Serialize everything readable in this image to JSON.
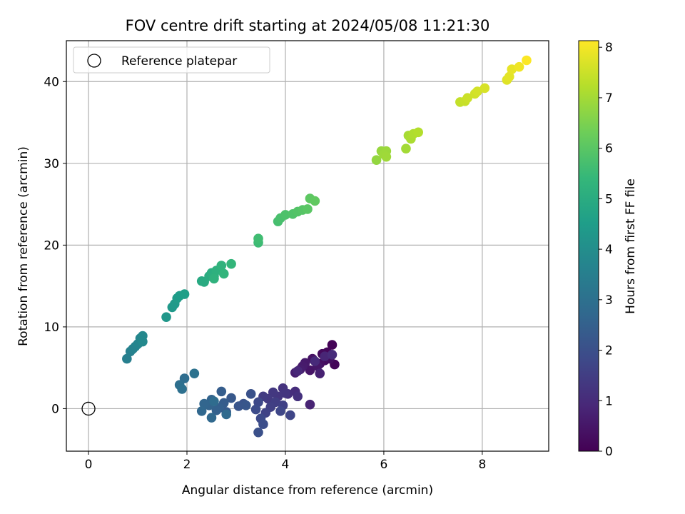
{
  "chart_data": {
    "type": "scatter",
    "title": "FOV centre drift starting at 2024/05/08 11:21:30",
    "xlabel": "Angular distance from reference (arcmin)",
    "ylabel": "Rotation from reference (arcmin)",
    "xlim": [
      -0.45,
      9.35
    ],
    "ylim": [
      -5.2,
      45.0
    ],
    "xticks": [
      0,
      2,
      4,
      6,
      8
    ],
    "yticks": [
      0,
      10,
      20,
      30,
      40
    ],
    "grid": true,
    "legend": {
      "placement": "upper-left",
      "entries": [
        "Reference platepar"
      ]
    },
    "reference_point": {
      "x": 0,
      "y": 0,
      "marker": "open-circle"
    },
    "colorbar": {
      "label": "Hours from first FF file",
      "min": 0,
      "max": 8.13,
      "ticks": [
        0,
        1,
        2,
        3,
        4,
        5,
        6,
        7,
        8
      ],
      "colormap": "viridis"
    },
    "colors": {
      "viridis": [
        "#440154",
        "#482878",
        "#3e4989",
        "#31688e",
        "#26828e",
        "#1f9e89",
        "#35b779",
        "#6ece58",
        "#b5de2b",
        "#fde725"
      ],
      "grid": "#b0b0b0"
    },
    "points": [
      [
        4.95,
        7.8,
        0.05
      ],
      [
        5.0,
        5.4,
        0.1
      ],
      [
        4.85,
        6.9,
        0.15
      ],
      [
        4.75,
        6.7,
        0.2
      ],
      [
        4.8,
        5.9,
        0.25
      ],
      [
        4.9,
        6.1,
        0.3
      ],
      [
        4.7,
        5.5,
        0.35
      ],
      [
        4.55,
        6.1,
        0.4
      ],
      [
        4.5,
        4.7,
        0.45
      ],
      [
        4.65,
        5.2,
        0.5
      ],
      [
        4.4,
        5.6,
        0.55
      ],
      [
        4.35,
        5.2,
        0.6
      ],
      [
        4.3,
        4.8,
        0.65
      ],
      [
        4.2,
        4.4,
        0.7
      ],
      [
        4.7,
        4.3,
        0.75
      ],
      [
        4.5,
        0.5,
        0.8
      ],
      [
        4.8,
        6.4,
        0.85
      ],
      [
        4.25,
        4.6,
        0.9
      ],
      [
        4.6,
        5.8,
        0.95
      ],
      [
        4.95,
        6.6,
        1.0
      ],
      [
        4.2,
        2.1,
        1.05
      ],
      [
        4.05,
        1.8,
        1.1
      ],
      [
        4.25,
        1.5,
        1.15
      ],
      [
        3.95,
        2.5,
        1.2
      ],
      [
        4.0,
        1.9,
        1.25
      ],
      [
        3.85,
        1.5,
        1.3
      ],
      [
        3.75,
        2.0,
        1.35
      ],
      [
        3.65,
        1.2,
        1.4
      ],
      [
        3.55,
        1.5,
        1.45
      ],
      [
        3.8,
        0.8,
        1.5
      ],
      [
        3.7,
        0.2,
        1.55
      ],
      [
        3.95,
        0.4,
        1.6
      ],
      [
        3.6,
        -0.5,
        1.65
      ],
      [
        4.1,
        -0.8,
        1.7
      ],
      [
        3.9,
        -0.3,
        1.75
      ],
      [
        3.45,
        0.8,
        1.8
      ],
      [
        3.5,
        -1.2,
        1.85
      ],
      [
        3.4,
        -0.1,
        1.9
      ],
      [
        3.55,
        -1.9,
        1.95
      ],
      [
        3.45,
        -2.9,
        2.0
      ],
      [
        3.3,
        1.8,
        2.05
      ],
      [
        3.15,
        0.6,
        2.1
      ],
      [
        3.05,
        0.3,
        2.15
      ],
      [
        3.2,
        0.4,
        2.2
      ],
      [
        2.9,
        1.3,
        2.25
      ],
      [
        2.8,
        -0.4,
        2.3
      ],
      [
        2.75,
        0.7,
        2.35
      ],
      [
        2.7,
        2.1,
        2.4
      ],
      [
        2.65,
        0.1,
        2.45
      ],
      [
        2.6,
        -0.2,
        2.5
      ],
      [
        2.5,
        1.1,
        2.55
      ],
      [
        2.45,
        0.4,
        2.6
      ],
      [
        2.35,
        0.6,
        2.65
      ],
      [
        2.3,
        -0.3,
        2.7
      ],
      [
        2.5,
        -1.1,
        2.75
      ],
      [
        2.8,
        -0.7,
        2.8
      ],
      [
        2.55,
        0.9,
        2.85
      ],
      [
        1.95,
        3.7,
        2.9
      ],
      [
        1.85,
        2.9,
        2.95
      ],
      [
        1.9,
        2.4,
        3.0
      ],
      [
        2.15,
        4.3,
        3.05
      ],
      [
        0.78,
        6.1,
        3.5
      ],
      [
        0.85,
        7.0,
        3.55
      ],
      [
        0.9,
        7.3,
        3.6
      ],
      [
        0.95,
        7.6,
        3.65
      ],
      [
        1.0,
        7.9,
        3.7
      ],
      [
        1.05,
        8.6,
        3.75
      ],
      [
        1.1,
        8.9,
        3.8
      ],
      [
        1.1,
        8.2,
        3.85
      ],
      [
        1.58,
        11.2,
        4.3
      ],
      [
        1.7,
        12.4,
        4.35
      ],
      [
        1.75,
        12.8,
        4.4
      ],
      [
        1.8,
        13.5,
        4.45
      ],
      [
        1.85,
        13.8,
        4.5
      ],
      [
        1.95,
        14.0,
        4.55
      ],
      [
        2.3,
        15.6,
        4.9
      ],
      [
        2.35,
        15.5,
        4.95
      ],
      [
        2.45,
        16.2,
        5.0
      ],
      [
        2.5,
        16.6,
        5.05
      ],
      [
        2.55,
        16.2,
        5.1
      ],
      [
        2.6,
        16.9,
        5.15
      ],
      [
        2.55,
        15.9,
        5.2
      ],
      [
        2.7,
        17.5,
        5.25
      ],
      [
        2.75,
        16.5,
        5.3
      ],
      [
        2.9,
        17.7,
        5.35
      ],
      [
        3.45,
        20.3,
        5.55
      ],
      [
        3.45,
        20.8,
        5.6
      ],
      [
        3.85,
        22.9,
        5.7
      ],
      [
        3.9,
        23.3,
        5.75
      ],
      [
        4.0,
        23.7,
        5.8
      ],
      [
        4.15,
        23.8,
        5.85
      ],
      [
        4.25,
        24.1,
        5.9
      ],
      [
        4.35,
        24.3,
        5.95
      ],
      [
        4.45,
        24.4,
        6.0
      ],
      [
        4.5,
        25.7,
        6.05
      ],
      [
        4.6,
        25.4,
        6.1
      ],
      [
        5.85,
        30.4,
        6.8
      ],
      [
        5.95,
        31.5,
        6.85
      ],
      [
        6.05,
        31.5,
        6.9
      ],
      [
        6.0,
        31.1,
        6.92
      ],
      [
        6.05,
        30.8,
        6.95
      ],
      [
        6.45,
        31.8,
        7.0
      ],
      [
        6.5,
        33.4,
        7.05
      ],
      [
        6.55,
        33.0,
        7.1
      ],
      [
        6.6,
        33.6,
        7.15
      ],
      [
        6.7,
        33.8,
        7.2
      ],
      [
        7.55,
        37.5,
        7.4
      ],
      [
        7.65,
        37.6,
        7.45
      ],
      [
        7.7,
        38.0,
        7.5
      ],
      [
        7.85,
        38.5,
        7.55
      ],
      [
        7.9,
        38.8,
        7.6
      ],
      [
        8.05,
        39.2,
        7.65
      ],
      [
        8.5,
        40.2,
        7.75
      ],
      [
        8.55,
        40.6,
        7.8
      ],
      [
        8.6,
        41.5,
        7.85
      ],
      [
        8.75,
        41.8,
        7.95
      ],
      [
        8.9,
        42.6,
        8.1
      ]
    ]
  }
}
